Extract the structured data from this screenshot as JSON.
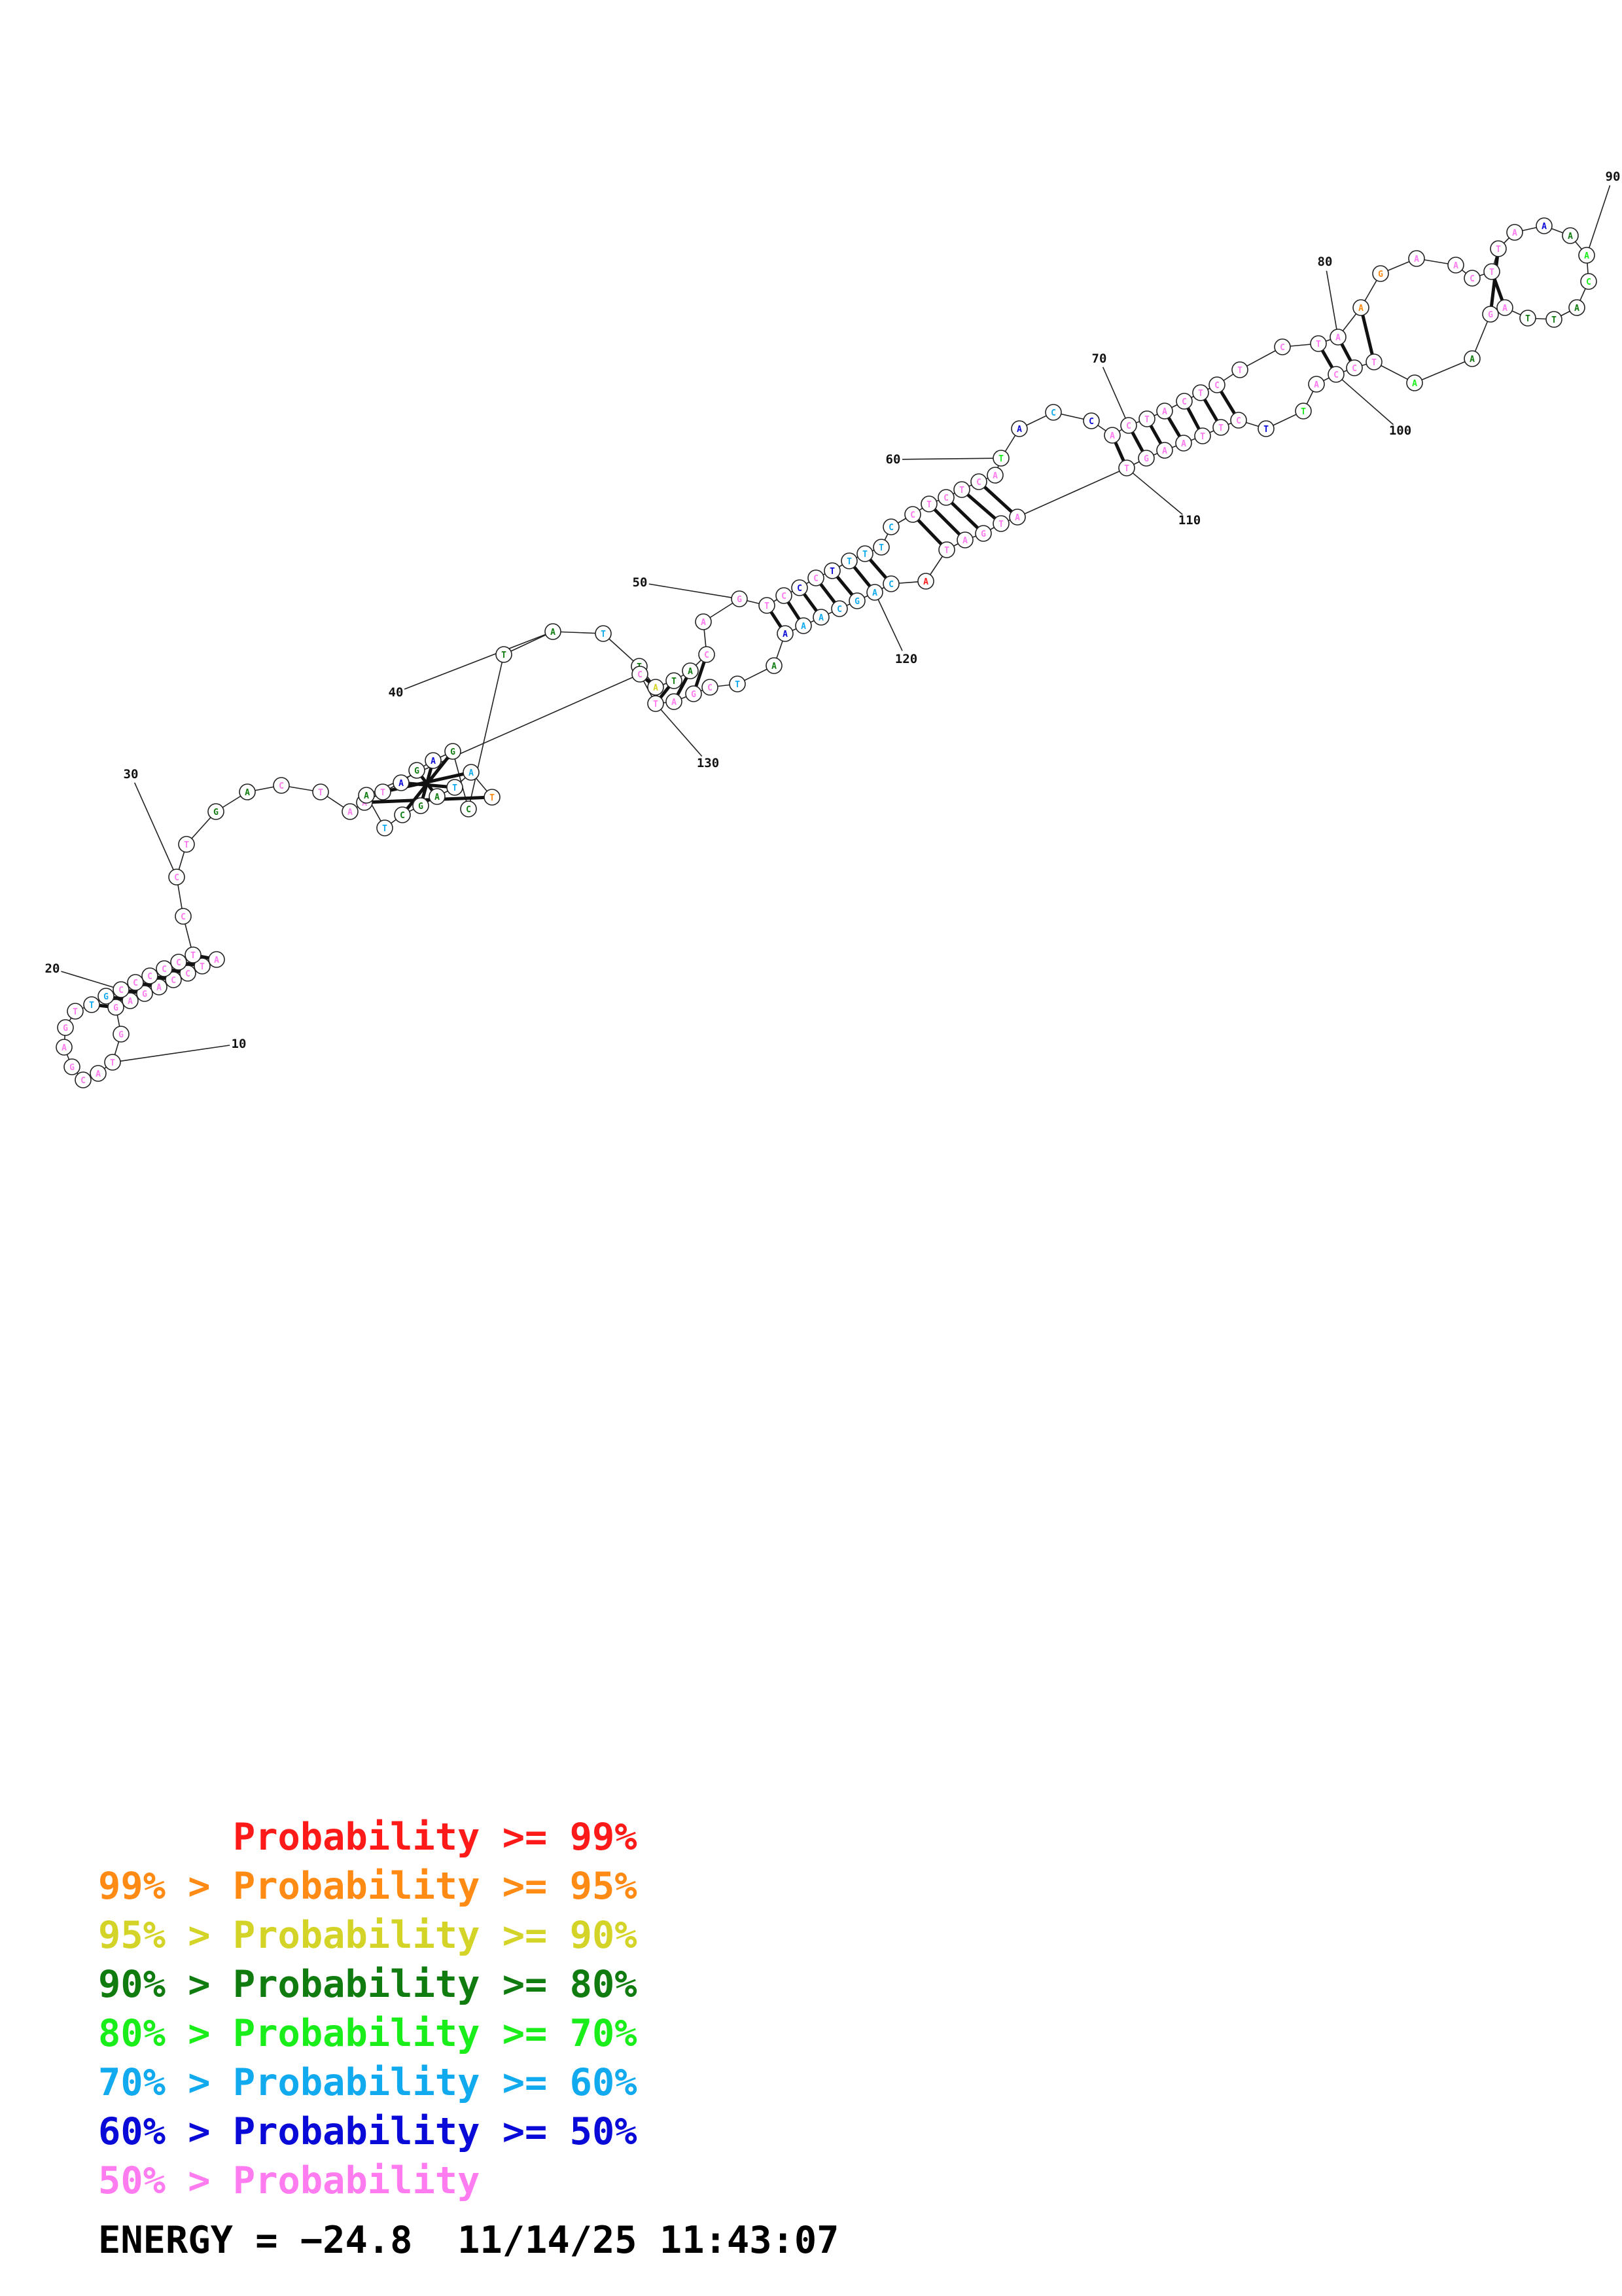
{
  "colors": {
    "p99": "#ff1a1a",
    "p95": "#ff8a14",
    "p90": "#d4d428",
    "p80": "#107c10",
    "p70": "#1aee1a",
    "p60": "#12aaee",
    "p50": "#0a0ad8",
    "plow": "#ff7cf0"
  },
  "legend": [
    {
      "lower": "",
      "label": "Probability >= 99%",
      "color_key": "p99"
    },
    {
      "lower": "99% > ",
      "label": "Probability >= 95%",
      "color_key": "p95"
    },
    {
      "lower": "95% > ",
      "label": "Probability >= 90%",
      "color_key": "p90"
    },
    {
      "lower": "90% > ",
      "label": "Probability >= 80%",
      "color_key": "p80"
    },
    {
      "lower": "80% > ",
      "label": "Probability >= 70%",
      "color_key": "p70"
    },
    {
      "lower": "70% > ",
      "label": "Probability >= 60%",
      "color_key": "p60"
    },
    {
      "lower": "60% > ",
      "label": "Probability >= 50%",
      "color_key": "p50"
    },
    {
      "lower": "50% > ",
      "label": "Probability",
      "color_key": "plow"
    }
  ],
  "energy_label": "ENERGY = −24.8  11/14/25 11:43:07",
  "index_labels": [
    "10",
    "20",
    "30",
    "40",
    "50",
    "60",
    "70",
    "80",
    "90",
    "100",
    "110",
    "120",
    "130"
  ],
  "nucleotides": [
    {
      "n": 1,
      "b": "A",
      "c": "plow"
    },
    {
      "n": 2,
      "b": "T",
      "c": "plow"
    },
    {
      "n": 3,
      "b": "C",
      "c": "plow"
    },
    {
      "n": 4,
      "b": "C",
      "c": "plow"
    },
    {
      "n": 5,
      "b": "A",
      "c": "plow"
    },
    {
      "n": 6,
      "b": "G",
      "c": "plow"
    },
    {
      "n": 7,
      "b": "A",
      "c": "plow"
    },
    {
      "n": 8,
      "b": "G",
      "c": "plow"
    },
    {
      "n": 9,
      "b": "G",
      "c": "plow"
    },
    {
      "n": 10,
      "b": "T",
      "c": "plow"
    },
    {
      "n": 11,
      "b": "A",
      "c": "plow"
    },
    {
      "n": 12,
      "b": "C",
      "c": "plow"
    },
    {
      "n": 13,
      "b": "G",
      "c": "plow"
    },
    {
      "n": 14,
      "b": "A",
      "c": "plow"
    },
    {
      "n": 15,
      "b": "G",
      "c": "plow"
    },
    {
      "n": 16,
      "b": "T",
      "c": "plow"
    },
    {
      "n": 17,
      "b": "T",
      "c": "p60"
    },
    {
      "n": 18,
      "b": "G",
      "c": "p60"
    },
    {
      "n": 19,
      "b": "C",
      "c": "plow"
    },
    {
      "n": 20,
      "b": "C",
      "c": "plow"
    },
    {
      "n": 21,
      "b": "C",
      "c": "plow"
    },
    {
      "n": 22,
      "b": "C",
      "c": "plow"
    },
    {
      "n": 23,
      "b": "C",
      "c": "plow"
    },
    {
      "n": 24,
      "b": "T",
      "c": "plow"
    },
    {
      "n": 25,
      "b": "C",
      "c": "plow"
    },
    {
      "n": 26,
      "b": "C",
      "c": "plow"
    },
    {
      "n": 27,
      "b": "T",
      "c": "plow"
    },
    {
      "n": 28,
      "b": "G",
      "c": "p80"
    },
    {
      "n": 29,
      "b": "A",
      "c": "p80"
    },
    {
      "n": 30,
      "b": "C",
      "c": "plow"
    },
    {
      "n": 31,
      "b": "T",
      "c": "plow"
    },
    {
      "n": 32,
      "b": "A",
      "c": "plow"
    },
    {
      "n": 33,
      "b": "A",
      "c": "plow"
    },
    {
      "n": 34,
      "b": "T",
      "c": "plow"
    },
    {
      "n": 35,
      "b": "A",
      "c": "p50"
    },
    {
      "n": 36,
      "b": "G",
      "c": "p80"
    },
    {
      "n": 37,
      "b": "A",
      "c": "p50"
    },
    {
      "n": 38,
      "b": "G",
      "c": "p80"
    },
    {
      "n": 39,
      "b": "C",
      "c": "p80"
    },
    {
      "n": 40,
      "b": "T",
      "c": "p80"
    },
    {
      "n": 41,
      "b": "A",
      "c": "p80"
    },
    {
      "n": 42,
      "b": "T",
      "c": "p60"
    },
    {
      "n": 43,
      "b": "T",
      "c": "p80"
    },
    {
      "n": 44,
      "b": "A",
      "c": "p90"
    },
    {
      "n": 45,
      "b": "T",
      "c": "p80"
    },
    {
      "n": 46,
      "b": "A",
      "c": "p80"
    },
    {
      "n": 47,
      "b": "C",
      "c": "plow"
    },
    {
      "n": 48,
      "b": "A",
      "c": "plow"
    },
    {
      "n": 49,
      "b": "G",
      "c": "plow"
    },
    {
      "n": 50,
      "b": "T",
      "c": "plow"
    },
    {
      "n": 51,
      "b": "C",
      "c": "plow"
    },
    {
      "n": 52,
      "b": "C",
      "c": "p50"
    },
    {
      "n": 53,
      "b": "C",
      "c": "plow"
    },
    {
      "n": 54,
      "b": "T",
      "c": "p50"
    },
    {
      "n": 55,
      "b": "T",
      "c": "p60"
    },
    {
      "n": 56,
      "b": "T",
      "c": "p60"
    },
    {
      "n": 57,
      "b": "T",
      "c": "p60"
    },
    {
      "n": 58,
      "b": "C",
      "c": "p60"
    },
    {
      "n": 59,
      "b": "C",
      "c": "plow"
    },
    {
      "n": 60,
      "b": "T",
      "c": "plow"
    },
    {
      "n": 61,
      "b": "C",
      "c": "plow"
    },
    {
      "n": 62,
      "b": "T",
      "c": "plow"
    },
    {
      "n": 63,
      "b": "C",
      "c": "plow"
    },
    {
      "n": 64,
      "b": "A",
      "c": "plow"
    },
    {
      "n": 65,
      "b": "T",
      "c": "p70"
    },
    {
      "n": 66,
      "b": "A",
      "c": "p50"
    },
    {
      "n": 67,
      "b": "C",
      "c": "p60"
    },
    {
      "n": 68,
      "b": "C",
      "c": "p50"
    },
    {
      "n": 69,
      "b": "A",
      "c": "plow"
    },
    {
      "n": 70,
      "b": "C",
      "c": "plow"
    },
    {
      "n": 71,
      "b": "T",
      "c": "plow"
    },
    {
      "n": 72,
      "b": "A",
      "c": "plow"
    },
    {
      "n": 73,
      "b": "C",
      "c": "plow"
    },
    {
      "n": 74,
      "b": "T",
      "c": "plow"
    },
    {
      "n": 75,
      "b": "C",
      "c": "plow"
    },
    {
      "n": 76,
      "b": "T",
      "c": "plow"
    },
    {
      "n": 77,
      "b": "C",
      "c": "plow"
    },
    {
      "n": 78,
      "b": "T",
      "c": "plow"
    },
    {
      "n": 79,
      "b": "A",
      "c": "plow"
    },
    {
      "n": 80,
      "b": "A",
      "c": "p95"
    },
    {
      "n": 81,
      "b": "G",
      "c": "p95"
    },
    {
      "n": 82,
      "b": "A",
      "c": "plow"
    },
    {
      "n": 83,
      "b": "A",
      "c": "plow"
    },
    {
      "n": 84,
      "b": "C",
      "c": "plow"
    },
    {
      "n": 85,
      "b": "T",
      "c": "plow"
    },
    {
      "n": 86,
      "b": "T",
      "c": "plow"
    },
    {
      "n": 87,
      "b": "A",
      "c": "plow"
    },
    {
      "n": 88,
      "b": "A",
      "c": "p50"
    },
    {
      "n": 89,
      "b": "A",
      "c": "p80"
    },
    {
      "n": 90,
      "b": "A",
      "c": "p70"
    },
    {
      "n": 91,
      "b": "C",
      "c": "p70"
    },
    {
      "n": 92,
      "b": "A",
      "c": "p80"
    },
    {
      "n": 93,
      "b": "T",
      "c": "p80"
    },
    {
      "n": 94,
      "b": "T",
      "c": "p80"
    },
    {
      "n": 95,
      "b": "A",
      "c": "plow"
    },
    {
      "n": 96,
      "b": "G",
      "c": "plow"
    },
    {
      "n": 97,
      "b": "A",
      "c": "p80"
    },
    {
      "n": 98,
      "b": "A",
      "c": "p70"
    },
    {
      "n": 99,
      "b": "T",
      "c": "plow"
    },
    {
      "n": 100,
      "b": "C",
      "c": "plow"
    },
    {
      "n": 101,
      "b": "C",
      "c": "plow"
    },
    {
      "n": 102,
      "b": "A",
      "c": "plow"
    },
    {
      "n": 103,
      "b": "T",
      "c": "p70"
    },
    {
      "n": 104,
      "b": "T",
      "c": "p50"
    },
    {
      "n": 105,
      "b": "C",
      "c": "plow"
    },
    {
      "n": 106,
      "b": "T",
      "c": "plow"
    },
    {
      "n": 107,
      "b": "T",
      "c": "plow"
    },
    {
      "n": 108,
      "b": "A",
      "c": "plow"
    },
    {
      "n": 109,
      "b": "A",
      "c": "plow"
    },
    {
      "n": 110,
      "b": "G",
      "c": "plow"
    },
    {
      "n": 111,
      "b": "T",
      "c": "plow"
    },
    {
      "n": 112,
      "b": "A",
      "c": "plow"
    },
    {
      "n": 113,
      "b": "T",
      "c": "plow"
    },
    {
      "n": 114,
      "b": "G",
      "c": "plow"
    },
    {
      "n": 115,
      "b": "A",
      "c": "plow"
    },
    {
      "n": 116,
      "b": "T",
      "c": "plow"
    },
    {
      "n": 117,
      "b": "A",
      "c": "p99"
    },
    {
      "n": 118,
      "b": "C",
      "c": "p60"
    },
    {
      "n": 119,
      "b": "A",
      "c": "p60"
    },
    {
      "n": 120,
      "b": "G",
      "c": "p60"
    },
    {
      "n": 121,
      "b": "C",
      "c": "p60"
    },
    {
      "n": 122,
      "b": "A",
      "c": "p60"
    },
    {
      "n": 123,
      "b": "A",
      "c": "p60"
    },
    {
      "n": 124,
      "b": "A",
      "c": "p50"
    },
    {
      "n": 125,
      "b": "A",
      "c": "p80"
    },
    {
      "n": 126,
      "b": "T",
      "c": "p60"
    },
    {
      "n": 127,
      "b": "C",
      "c": "plow"
    },
    {
      "n": 128,
      "b": "G",
      "c": "plow"
    },
    {
      "n": 129,
      "b": "A",
      "c": "plow"
    },
    {
      "n": 130,
      "b": "T",
      "c": "plow"
    },
    {
      "n": 131,
      "b": "C",
      "c": "plow"
    },
    {
      "n": 132,
      "b": "A",
      "c": "p80"
    },
    {
      "n": 133,
      "b": "T",
      "c": "p60"
    },
    {
      "n": 134,
      "b": "C",
      "c": "p80"
    },
    {
      "n": 135,
      "b": "G",
      "c": "p80"
    },
    {
      "n": 136,
      "b": "A",
      "c": "p80"
    },
    {
      "n": 137,
      "b": "T",
      "c": "p60"
    },
    {
      "n": 138,
      "b": "A",
      "c": "p60"
    },
    {
      "n": 139,
      "b": "T",
      "c": "p95"
    }
  ]
}
